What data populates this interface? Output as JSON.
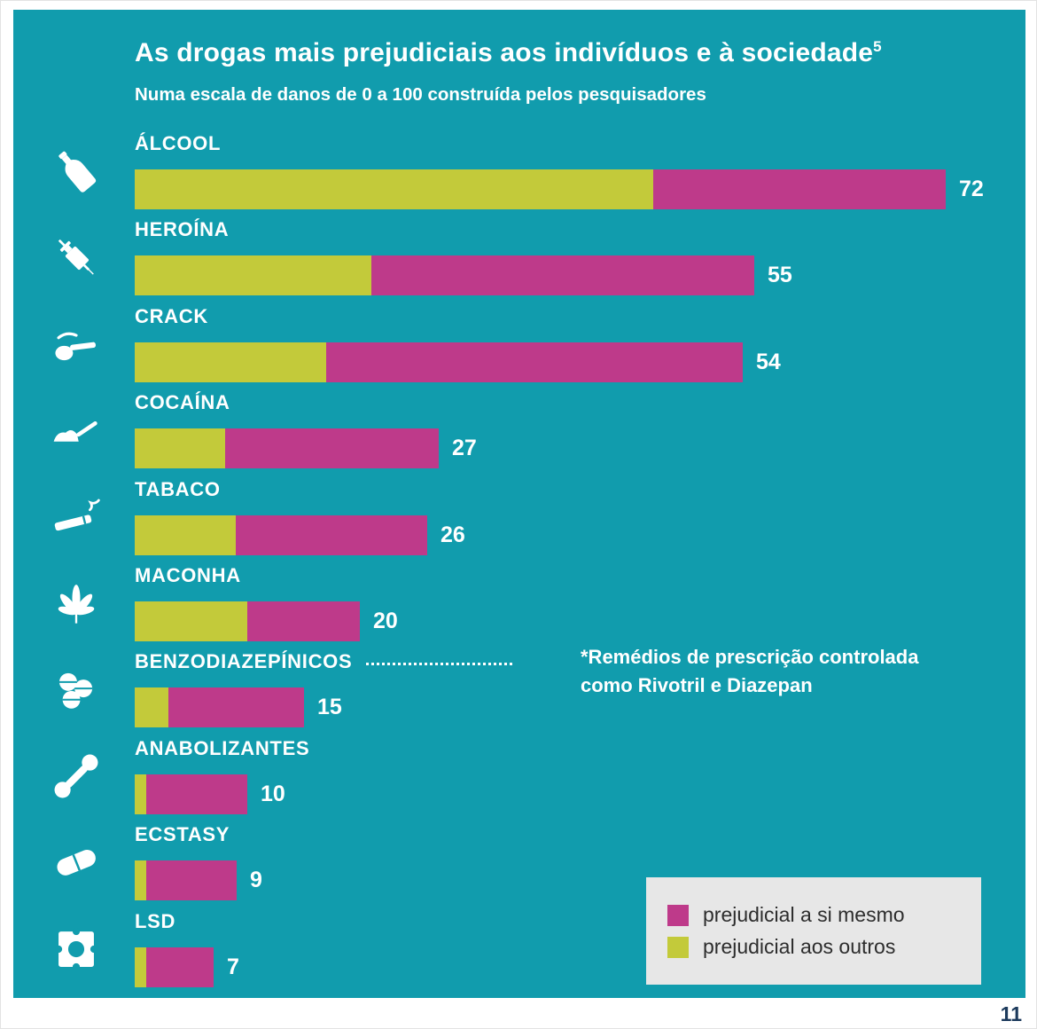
{
  "page": {
    "number": "11"
  },
  "chart": {
    "title": "As drogas mais prejudiciais aos indivíduos e à sociedade",
    "title_sup": "5",
    "subtitle": "Numa escala de danos de 0 a 100 construída pelos pesquisadores",
    "annotation": {
      "attached_to": "BENZODIAZEPÍNICOS",
      "line1": "*Remédios de prescrição controlada",
      "line2_prefix": "como ",
      "drug1": "Rivotril",
      "line2_mid": " e ",
      "drug2": "Diazepan"
    },
    "legend": [
      {
        "label": "prejudicial a si mesmo",
        "color": "#BE3A8A"
      },
      {
        "label": "prejudicial aos outros",
        "color": "#C3CA3A"
      }
    ],
    "colors": {
      "background": "#119CAD",
      "bar_self": "#BE3A8A",
      "bar_others": "#C3CA3A",
      "text": "#FFFFFF",
      "legend_background": "#E7E7E7",
      "page_number": "#1C3A5C"
    }
  },
  "chart_data": {
    "type": "bar",
    "orientation": "horizontal",
    "stacked": true,
    "title": "As drogas mais prejudiciais aos indivíduos e à sociedade",
    "subtitle": "Numa escala de danos de 0 a 100 construída pelos pesquisadores",
    "xlim": [
      0,
      100
    ],
    "grid": false,
    "legend_position": "bottom-right",
    "categories": [
      "ÁLCOOL",
      "HEROÍNA",
      "CRACK",
      "COCAÍNA",
      "TABACO",
      "MACONHA",
      "BENZODIAZEPÍNICOS",
      "ANABOLIZANTES",
      "ECSTASY",
      "LSD"
    ],
    "totals": [
      72,
      55,
      54,
      27,
      26,
      20,
      15,
      10,
      9,
      7
    ],
    "series": [
      {
        "name": "prejudicial aos outros",
        "color": "#C3CA3A",
        "position": "left",
        "values": [
          46,
          21,
          17,
          8,
          9,
          10,
          3,
          1,
          1,
          1
        ]
      },
      {
        "name": "prejudicial a si mesmo",
        "color": "#BE3A8A",
        "position": "right",
        "values": [
          26,
          34,
          37,
          19,
          17,
          10,
          12,
          9,
          8,
          6
        ]
      }
    ],
    "icons": [
      "bottle-icon",
      "syringe-icon",
      "crack-pipe-icon",
      "powder-line-icon",
      "cigarette-icon",
      "cannabis-leaf-icon",
      "pills-icon",
      "dumbbell-icon",
      "capsule-pill-icon",
      "blotter-stamp-icon"
    ]
  }
}
